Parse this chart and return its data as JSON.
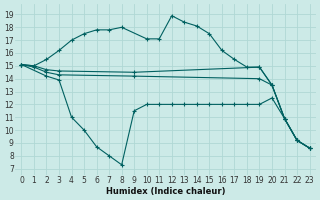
{
  "xlabel": "Humidex (Indice chaleur)",
  "bg_color": "#cceae7",
  "grid_color": "#b0d8d4",
  "line_color": "#006060",
  "x_ticks": [
    0,
    1,
    2,
    3,
    4,
    5,
    6,
    7,
    8,
    9,
    10,
    11,
    12,
    13,
    14,
    15,
    16,
    17,
    18,
    19,
    20,
    21,
    22,
    23
  ],
  "y_ticks": [
    7,
    8,
    9,
    10,
    11,
    12,
    13,
    14,
    15,
    16,
    17,
    18,
    19
  ],
  "ylim": [
    6.5,
    19.8
  ],
  "xlim": [
    -0.5,
    23.5
  ],
  "series": [
    {
      "x": [
        0,
        1,
        2,
        3,
        4,
        5,
        6,
        7,
        8,
        10,
        11,
        12,
        13,
        14,
        15,
        16,
        17,
        18,
        19,
        20,
        21,
        22,
        23
      ],
      "y": [
        15.1,
        15.0,
        15.5,
        16.2,
        17.0,
        17.5,
        17.8,
        17.8,
        18.0,
        17.1,
        17.1,
        18.9,
        18.4,
        18.1,
        17.5,
        16.2,
        15.5,
        14.9,
        14.9,
        13.5,
        10.9,
        9.2,
        8.6
      ]
    },
    {
      "x": [
        0,
        1,
        2,
        3,
        9,
        19,
        20,
        21,
        22,
        23
      ],
      "y": [
        15.1,
        15.0,
        14.7,
        14.6,
        14.5,
        14.9,
        13.5,
        10.9,
        9.2,
        8.6
      ]
    },
    {
      "x": [
        0,
        1,
        2,
        3,
        9,
        19,
        20,
        21,
        22,
        23
      ],
      "y": [
        15.1,
        14.9,
        14.5,
        14.3,
        14.2,
        14.0,
        13.5,
        10.9,
        9.2,
        8.6
      ]
    },
    {
      "x": [
        0,
        2,
        3,
        4,
        5,
        6,
        7,
        8,
        9,
        10,
        11,
        12,
        13,
        14,
        15,
        16,
        17,
        18,
        19,
        20,
        21,
        22,
        23
      ],
      "y": [
        15.1,
        14.2,
        13.9,
        11.0,
        10.0,
        8.7,
        8.0,
        7.3,
        11.5,
        12.0,
        12.0,
        12.0,
        12.0,
        12.0,
        12.0,
        12.0,
        12.0,
        12.0,
        12.0,
        12.5,
        10.9,
        9.2,
        8.6
      ]
    }
  ]
}
